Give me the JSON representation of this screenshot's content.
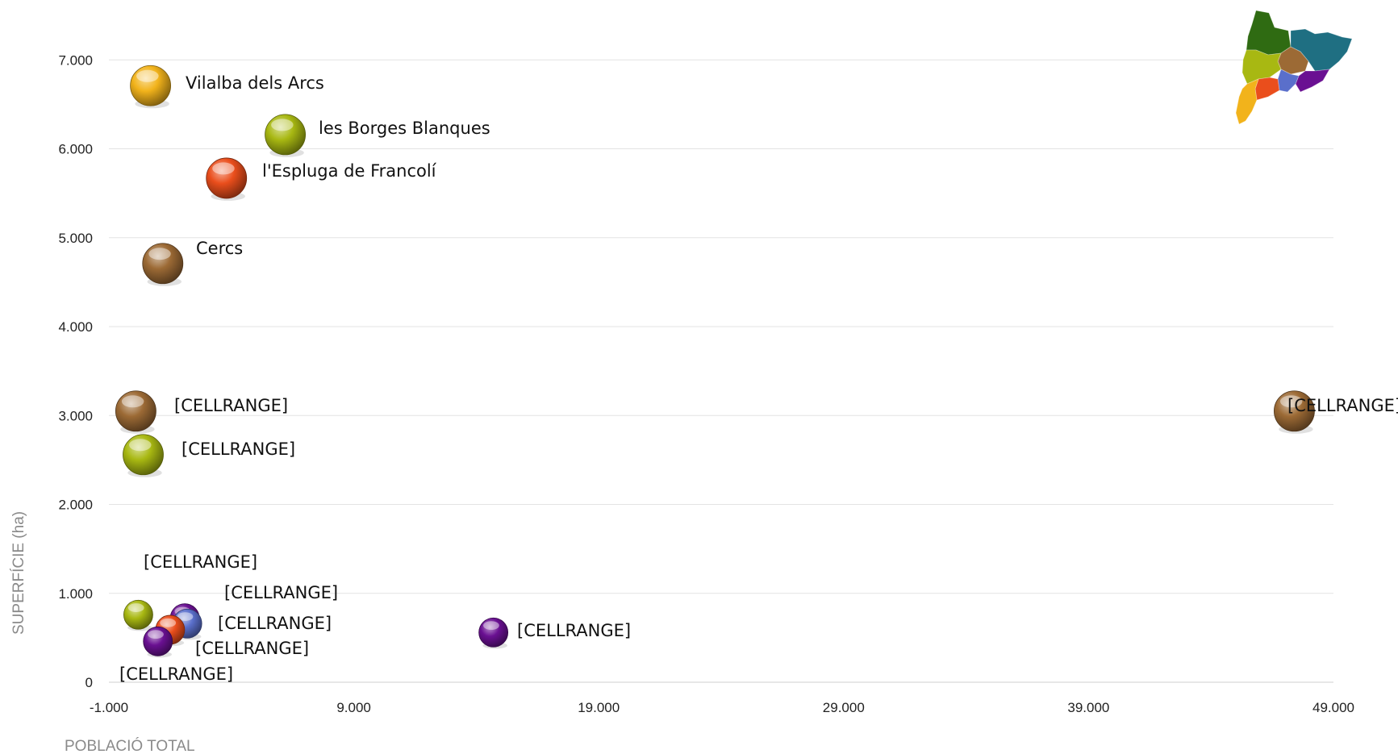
{
  "chart_data": {
    "type": "scatter",
    "title": "",
    "xlabel": "POBLACIÓ TOTAL",
    "ylabel": "SUPERFÍCIE (ha)",
    "xlim": [
      -1000,
      50000
    ],
    "ylim": [
      0,
      7000
    ],
    "x_ticks": [
      "-1.000",
      "9.000",
      "19.000",
      "29.000",
      "39.000",
      "49.000"
    ],
    "y_ticks": [
      "0",
      "1.000",
      "2.000",
      "3.000",
      "4.000",
      "5.000",
      "6.000",
      "7.000"
    ],
    "grid": true,
    "legend": "none",
    "points": [
      {
        "x": 700,
        "y": 6710,
        "label": "Vilalba dels Arcs",
        "color": "#f2b31b"
      },
      {
        "x": 6200,
        "y": 6160,
        "label": "les Borges Blanques",
        "color": "#a8b812"
      },
      {
        "x": 3800,
        "y": 5670,
        "label": "l'Espluga de Francolí",
        "color": "#ea4e1c"
      },
      {
        "x": 1200,
        "y": 4710,
        "label": "Cercs",
        "color": "#9c6a35"
      },
      {
        "x": 100,
        "y": 3050,
        "label": "[CELLRANGE]",
        "color": "#9c6a35"
      },
      {
        "x": 400,
        "y": 2560,
        "label": "[CELLRANGE]",
        "color": "#a8b812"
      },
      {
        "x": 47400,
        "y": 3050,
        "label": "[CELLRANGE]",
        "color": "#9c6a35"
      },
      {
        "x": 14700,
        "y": 560,
        "label": "[CELLRANGE]",
        "color": "#6a1092"
      },
      {
        "x": 200,
        "y": 760,
        "label": "[CELLRANGE]",
        "color": "#a8b812"
      },
      {
        "x": 2100,
        "y": 720,
        "label": "[CELLRANGE]",
        "color": "#6a1092"
      },
      {
        "x": 2200,
        "y": 660,
        "label": "[CELLRANGE]",
        "color": "#5a6fcb"
      },
      {
        "x": 1500,
        "y": 590,
        "label": "[CELLRANGE]",
        "color": "#ea4e1c"
      },
      {
        "x": 1000,
        "y": 460,
        "label": "[CELLRANGE]",
        "color": "#6a1092"
      }
    ]
  },
  "decoration": {
    "map_icon": "catalonia-regions-map-icon",
    "map_colors": [
      "#2f6b12",
      "#1f6f82",
      "#9c6a35",
      "#a8b812",
      "#6a1092",
      "#5a6fcb",
      "#ea4e1c",
      "#f2b31b"
    ]
  }
}
